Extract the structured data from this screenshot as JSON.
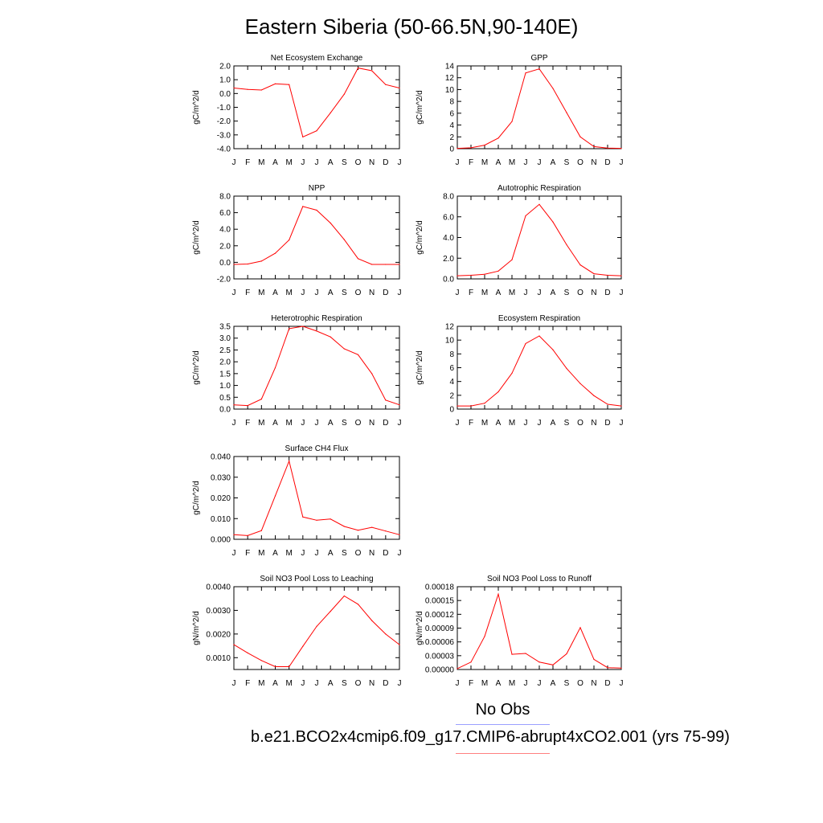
{
  "title": "Eastern Siberia (50-66.5N,90-140E)",
  "legend": {
    "obs_label": "No Obs",
    "model_label": "b.e21.BCO2x4cmip6.f09_g17.CMIP6-abrupt4xCO2.001 (yrs 75-99)",
    "obs_color": "#9aa0ff",
    "model_color": "#ff0000"
  },
  "chart_data": [
    {
      "type": "line",
      "title": "Net Ecosystem Exchange",
      "ylabel": "gC/m^2/d",
      "categories": [
        "J",
        "F",
        "M",
        "A",
        "M",
        "J",
        "J",
        "A",
        "S",
        "O",
        "N",
        "D",
        "J"
      ],
      "ylim": [
        -4.0,
        2.0
      ],
      "yticks": [
        "2.0",
        "1.0",
        "0.0",
        "-1.0",
        "-2.0",
        "-3.0",
        "-4.0"
      ],
      "series": [
        {
          "values": [
            0.4,
            0.3,
            0.25,
            0.7,
            0.65,
            -3.15,
            -2.7,
            -1.4,
            -0.05,
            1.85,
            1.65,
            0.65,
            0.4
          ]
        }
      ]
    },
    {
      "type": "line",
      "title": "GPP",
      "ylabel": "gC/m^2/d",
      "categories": [
        "J",
        "F",
        "M",
        "A",
        "M",
        "J",
        "J",
        "A",
        "S",
        "O",
        "N",
        "D",
        "J"
      ],
      "ylim": [
        0,
        14
      ],
      "yticks": [
        "14",
        "12",
        "10",
        "8",
        "6",
        "4",
        "2",
        "0"
      ],
      "series": [
        {
          "values": [
            0.05,
            0.15,
            0.6,
            1.8,
            4.6,
            12.8,
            13.5,
            10.2,
            6.1,
            2.0,
            0.35,
            0.1,
            0.05
          ]
        }
      ]
    },
    {
      "type": "line",
      "title": "NPP",
      "ylabel": "gC/m^2/d",
      "categories": [
        "J",
        "F",
        "M",
        "A",
        "M",
        "J",
        "J",
        "A",
        "S",
        "O",
        "N",
        "D",
        "J"
      ],
      "ylim": [
        -2.0,
        8.0
      ],
      "yticks": [
        "8.0",
        "6.0",
        "4.0",
        "2.0",
        "0.0",
        "-2.0"
      ],
      "series": [
        {
          "values": [
            -0.25,
            -0.2,
            0.15,
            1.1,
            2.7,
            6.75,
            6.3,
            4.75,
            2.75,
            0.45,
            -0.25,
            -0.25,
            -0.25
          ]
        }
      ]
    },
    {
      "type": "line",
      "title": "Autotrophic Respiration",
      "ylabel": "gC/m^2/d",
      "categories": [
        "J",
        "F",
        "M",
        "A",
        "M",
        "J",
        "J",
        "A",
        "S",
        "O",
        "N",
        "D",
        "J"
      ],
      "ylim": [
        0,
        8.0
      ],
      "yticks": [
        "8.0",
        "6.0",
        "4.0",
        "2.0",
        "0.0"
      ],
      "series": [
        {
          "values": [
            0.3,
            0.35,
            0.45,
            0.75,
            1.85,
            6.1,
            7.2,
            5.5,
            3.3,
            1.35,
            0.5,
            0.35,
            0.3
          ]
        }
      ]
    },
    {
      "type": "line",
      "title": "Heterotrophic Respiration",
      "ylabel": "gC/m^2/d",
      "categories": [
        "J",
        "F",
        "M",
        "A",
        "M",
        "J",
        "J",
        "A",
        "S",
        "O",
        "N",
        "D",
        "J"
      ],
      "ylim": [
        0,
        3.5
      ],
      "yticks": [
        "3.5",
        "3.0",
        "2.5",
        "2.0",
        "1.5",
        "1.0",
        "0.5",
        "0.0"
      ],
      "series": [
        {
          "values": [
            0.18,
            0.15,
            0.42,
            1.75,
            3.4,
            3.5,
            3.3,
            3.05,
            2.55,
            2.3,
            1.5,
            0.38,
            0.18
          ]
        }
      ]
    },
    {
      "type": "line",
      "title": "Ecosystem Respiration",
      "ylabel": "gC/m^2/d",
      "categories": [
        "J",
        "F",
        "M",
        "A",
        "M",
        "J",
        "J",
        "A",
        "S",
        "O",
        "N",
        "D",
        "J"
      ],
      "ylim": [
        0,
        12
      ],
      "yticks": [
        "12",
        "10",
        "8",
        "6",
        "4",
        "2",
        "0"
      ],
      "series": [
        {
          "values": [
            0.45,
            0.45,
            0.85,
            2.5,
            5.2,
            9.5,
            10.6,
            8.6,
            5.9,
            3.7,
            1.95,
            0.7,
            0.45
          ]
        }
      ]
    },
    {
      "type": "line",
      "title": "Surface CH4 Flux",
      "ylabel": "gC/m^2/d",
      "categories": [
        "J",
        "F",
        "M",
        "A",
        "M",
        "J",
        "J",
        "A",
        "S",
        "O",
        "N",
        "D",
        "J"
      ],
      "ylim": [
        0,
        0.04
      ],
      "yticks": [
        "0.040",
        "0.030",
        "0.020",
        "0.010",
        "0.000"
      ],
      "series": [
        {
          "values": [
            0.0022,
            0.0018,
            0.0042,
            0.021,
            0.0378,
            0.0108,
            0.0092,
            0.0098,
            0.0062,
            0.0044,
            0.0058,
            0.004,
            0.0022
          ]
        }
      ]
    },
    {
      "type": "line",
      "title": "Soil NO3 Pool Loss to Leaching",
      "ylabel": "gN/m^2/d",
      "categories": [
        "J",
        "F",
        "M",
        "A",
        "M",
        "J",
        "J",
        "A",
        "S",
        "O",
        "N",
        "D",
        "J"
      ],
      "ylim": [
        0.0005,
        0.004
      ],
      "yticks": [
        "0.0040",
        "0.0030",
        "0.0020",
        "0.0010"
      ],
      "series": [
        {
          "values": [
            0.00155,
            0.0012,
            0.00088,
            0.00062,
            0.00062,
            0.00148,
            0.00232,
            0.00296,
            0.00361,
            0.00326,
            0.00257,
            0.002,
            0.00155
          ]
        }
      ]
    },
    {
      "type": "line",
      "title": "Soil NO3 Pool Loss to Runoff",
      "ylabel": "gN/m^2/d",
      "categories": [
        "J",
        "F",
        "M",
        "A",
        "M",
        "J",
        "J",
        "A",
        "S",
        "O",
        "N",
        "D",
        "J"
      ],
      "ylim": [
        0,
        0.00018
      ],
      "yticks": [
        "0.00018",
        "0.00015",
        "0.00012",
        "0.00009",
        "0.00006",
        "0.00003",
        "0.00000"
      ],
      "series": [
        {
          "values": [
            2e-06,
            1.6e-05,
            7.2e-05,
            0.000164,
            3.3e-05,
            3.5e-05,
            1.6e-05,
            1e-05,
            3.4e-05,
            9.1e-05,
            2.2e-05,
            4e-06,
            3e-06
          ]
        }
      ]
    }
  ]
}
